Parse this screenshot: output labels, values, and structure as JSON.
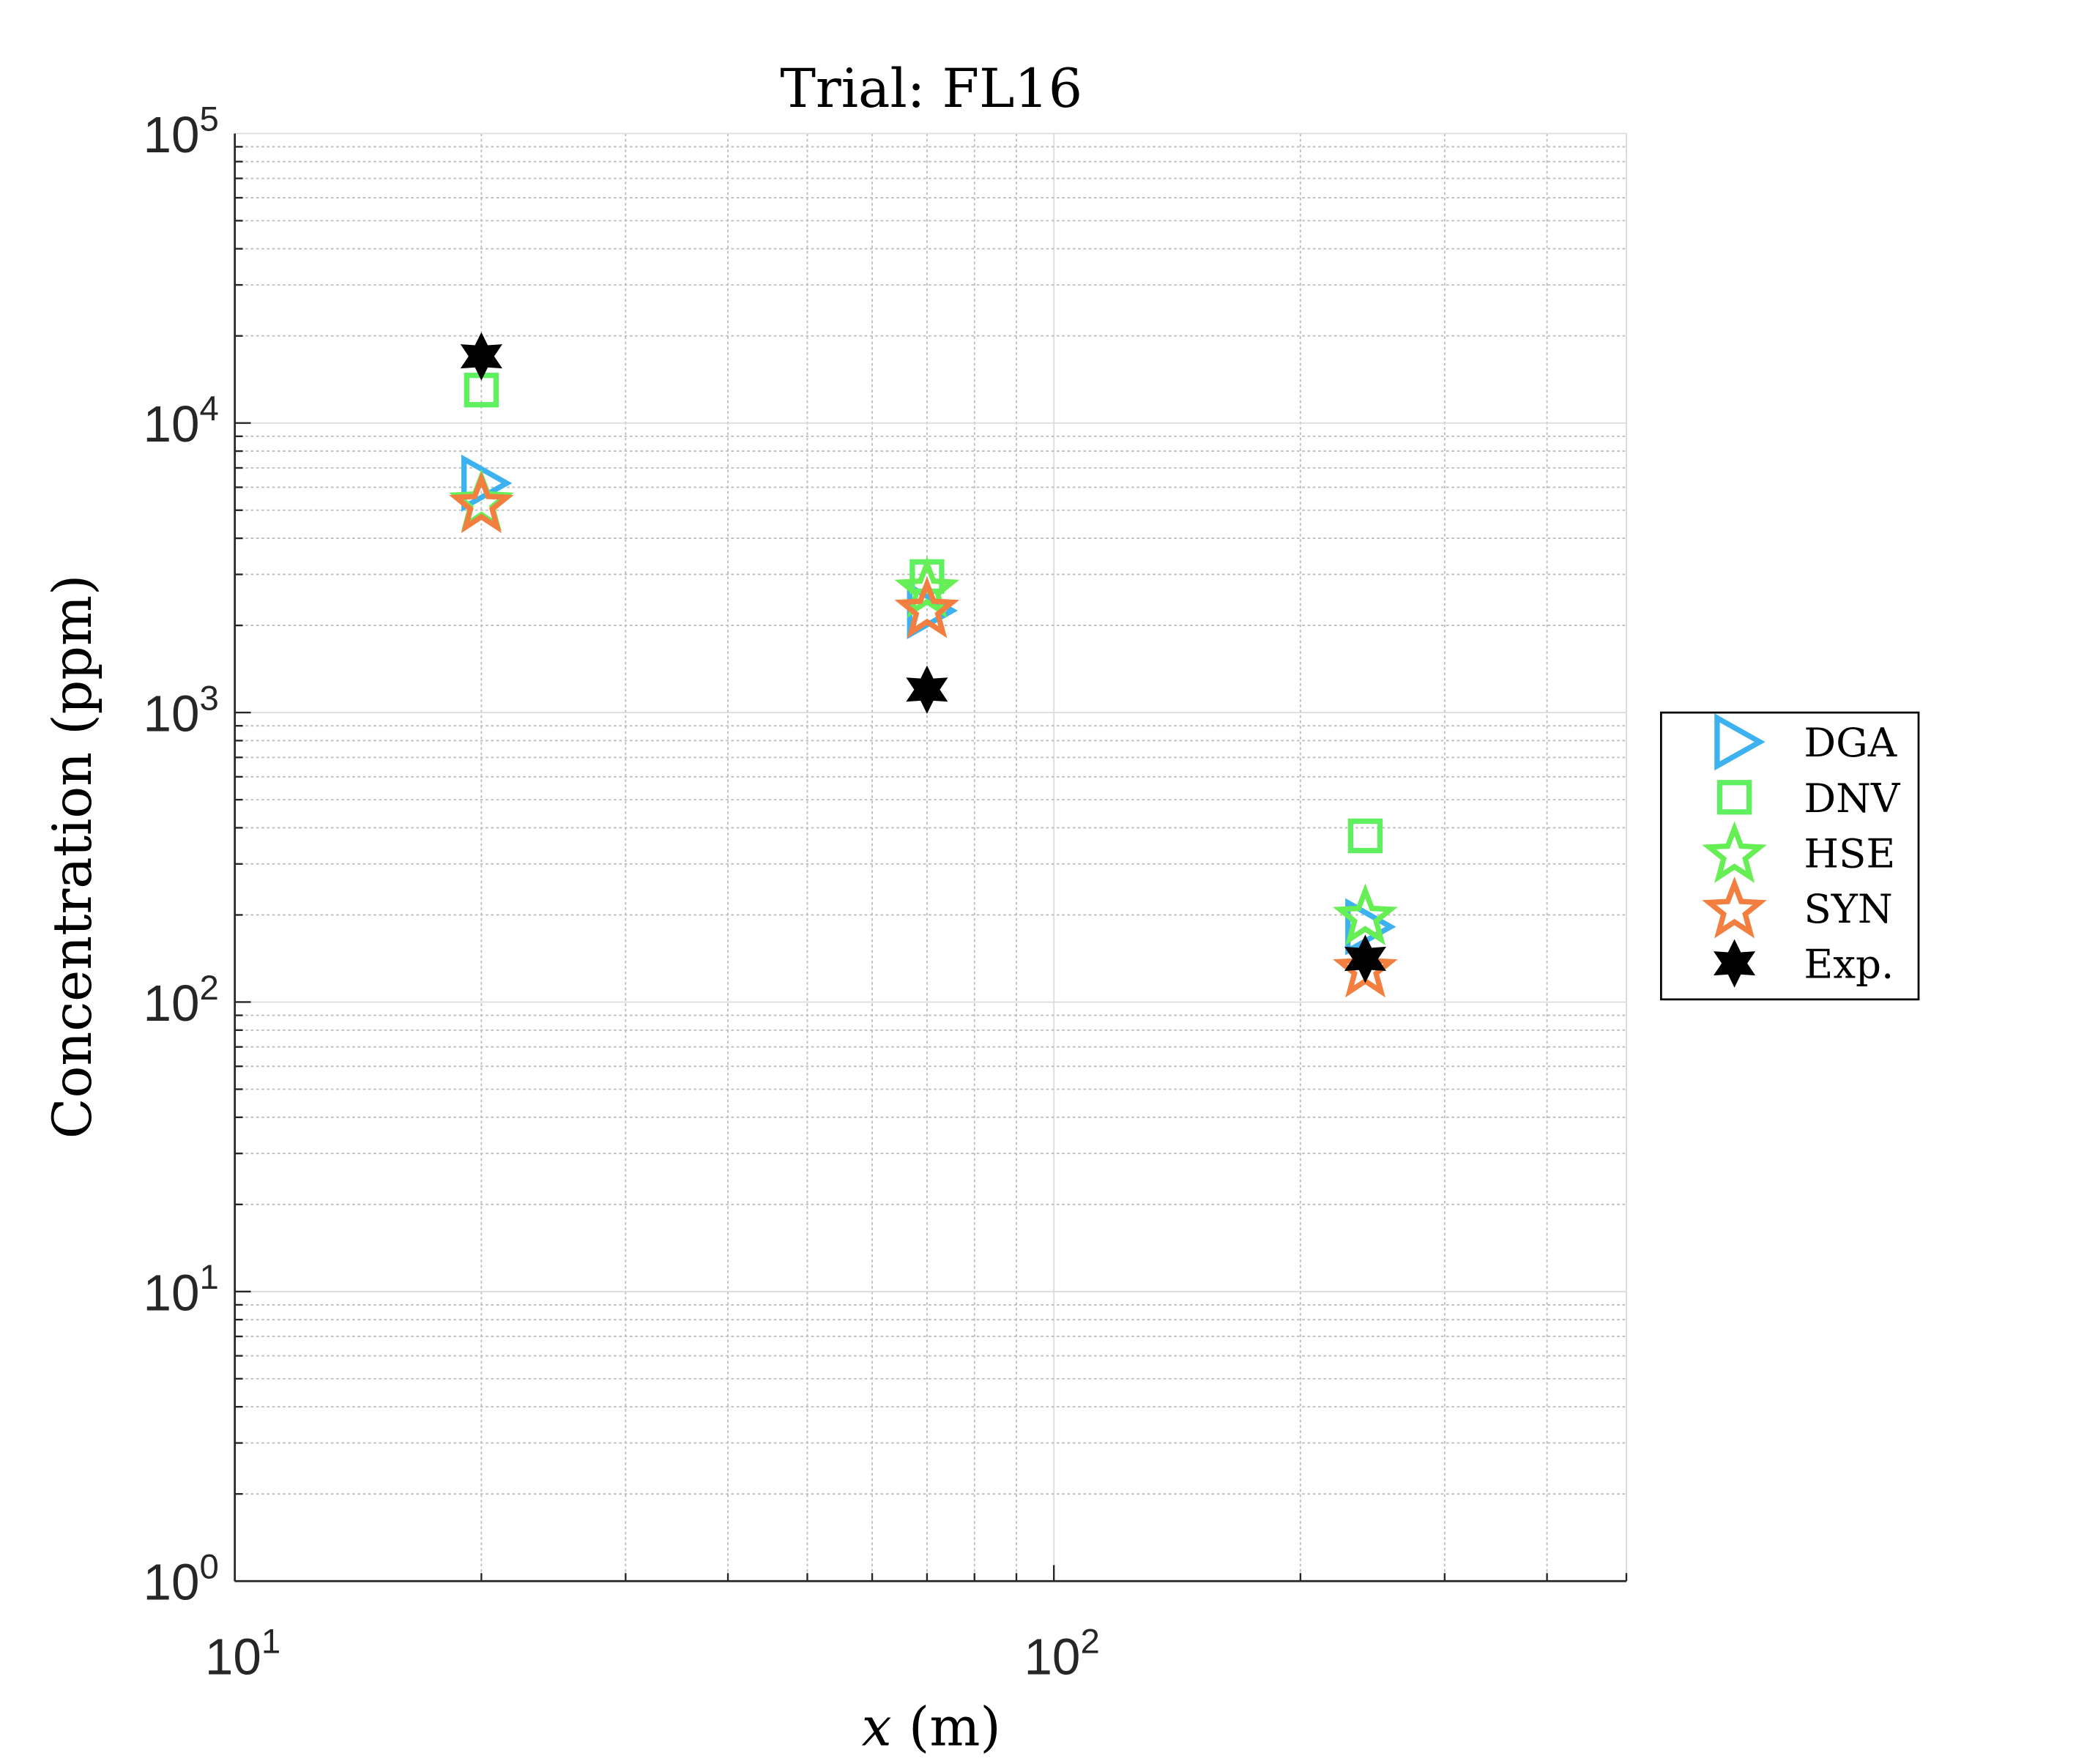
{
  "chart_data": {
    "type": "scatter",
    "title": "Trial: FL16",
    "xlabel": "x (m)",
    "xlabel_var": "x",
    "xlabel_unit": "(m)",
    "ylabel": "Concentration (ppm)",
    "xscale": "log",
    "yscale": "log",
    "xlim": [
      10,
      500
    ],
    "ylim": [
      1,
      100000
    ],
    "grid": true,
    "legend_position": "outside-right",
    "x_ticks": [
      {
        "base": "10",
        "exp": "1",
        "value": 10
      },
      {
        "base": "10",
        "exp": "2",
        "value": 100
      }
    ],
    "y_ticks": [
      {
        "base": "10",
        "exp": "0",
        "value": 1
      },
      {
        "base": "10",
        "exp": "1",
        "value": 10
      },
      {
        "base": "10",
        "exp": "2",
        "value": 100
      },
      {
        "base": "10",
        "exp": "3",
        "value": 1000
      },
      {
        "base": "10",
        "exp": "4",
        "value": 10000
      },
      {
        "base": "10",
        "exp": "5",
        "value": 100000
      }
    ],
    "x": [
      20,
      70,
      240
    ],
    "series": [
      {
        "name": "DGA",
        "marker": "triangle-right",
        "color": "#3DB2F0",
        "values": [
          6200,
          2250,
          182
        ]
      },
      {
        "name": "DNV",
        "marker": "square",
        "color": "#5EF05E",
        "values": [
          13000,
          2950,
          375
        ]
      },
      {
        "name": "HSE",
        "marker": "star-outline",
        "color": "#66EE55",
        "values": [
          5400,
          2700,
          200
        ]
      },
      {
        "name": "SYN",
        "marker": "star-outline",
        "color": "#F27F3F",
        "values": [
          5300,
          2300,
          132
        ]
      },
      {
        "name": "Exp.",
        "marker": "hexagram-filled",
        "color": "#000000",
        "values": [
          17000,
          1200,
          141
        ]
      }
    ]
  }
}
